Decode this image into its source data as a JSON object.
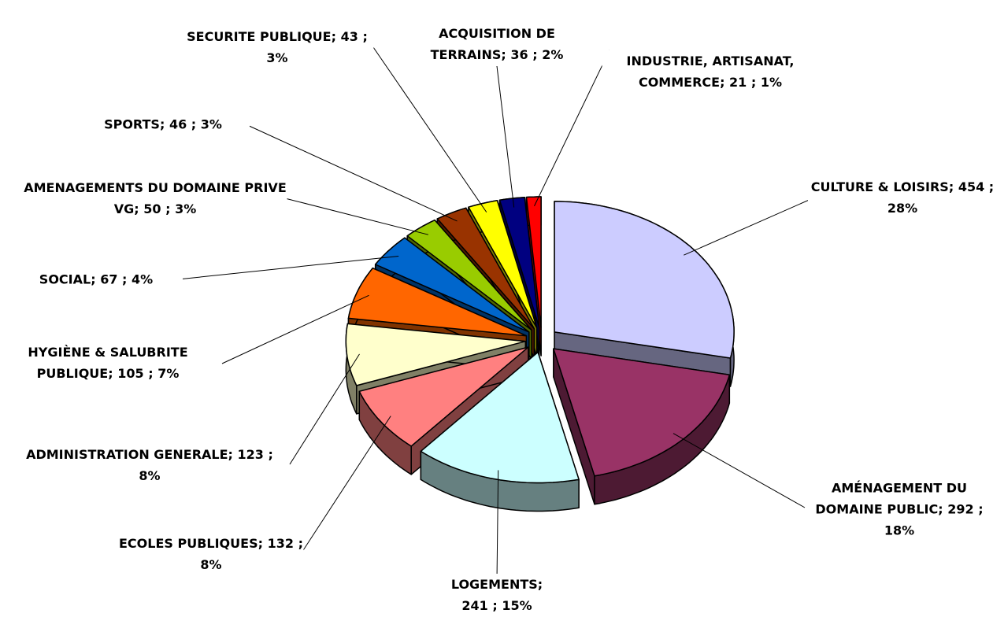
{
  "chart_data": {
    "type": "pie",
    "categories": [
      "CULTURE & LOISIRS",
      "AMÉNAGEMENT DU DOMAINE PUBLIC",
      "LOGEMENTS",
      "ECOLES PUBLIQUES",
      "ADMINISTRATION GENERALE",
      "HYGIÈNE & SALUBRITE PUBLIQUE",
      "SOCIAL",
      "AMENAGEMENTS DU DOMAINE PRIVE VG",
      "SPORTS",
      "SECURITE PUBLIQUE",
      "ACQUISITION DE TERRAINS",
      "INDUSTRIE, ARTISANAT, COMMERCE"
    ],
    "values": [
      454,
      292,
      241,
      132,
      123,
      105,
      67,
      50,
      46,
      43,
      36,
      21
    ],
    "percent_labels": [
      "28%",
      "18%",
      "15%",
      "8%",
      "8%",
      "7%",
      "4%",
      "3%",
      "3%",
      "3%",
      "2%",
      "1%"
    ],
    "separator": ";",
    "colors": [
      "#ccccff",
      "#993366",
      "#ccffff",
      "#ff8080",
      "#ffffcc",
      "#ff6600",
      "#0066cc",
      "#99cc00",
      "#993300",
      "#ffff00",
      "#000080",
      "#ff0000"
    ],
    "side_colors": [
      "#666680",
      "#4d1a33",
      "#668080",
      "#804040",
      "#808066",
      "#803300",
      "#003366",
      "#4d6600",
      "#4d1a00",
      "#808000",
      "#000040",
      "#800000"
    ]
  }
}
